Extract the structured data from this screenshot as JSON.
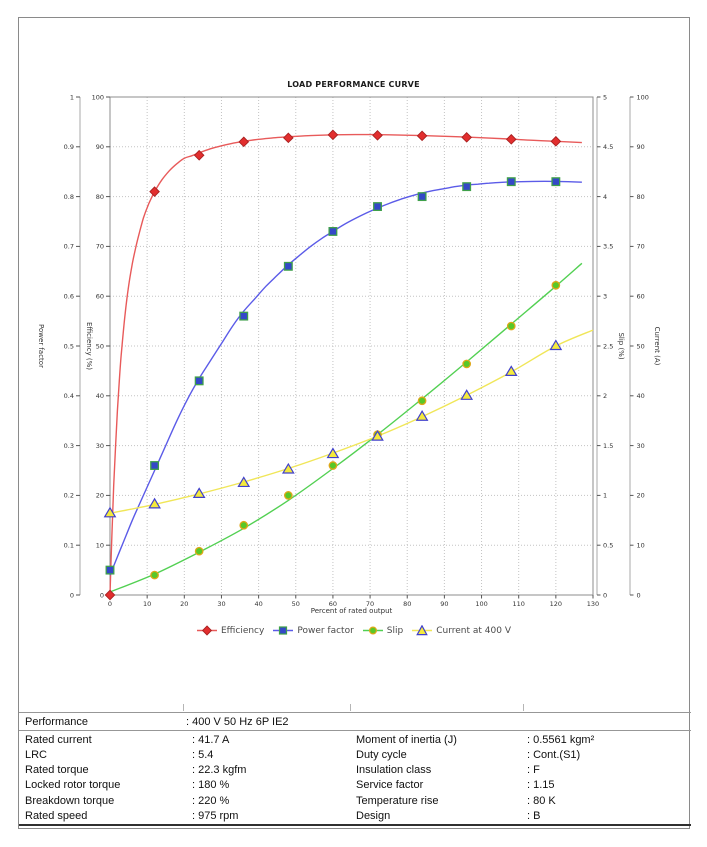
{
  "page": {
    "title": "LOAD PERFORMANCE CURVE"
  },
  "chart_data": {
    "type": "line",
    "title": "LOAD PERFORMANCE CURVE",
    "grid": true,
    "legend_position": "bottom",
    "x_axis": {
      "label": "Percent of rated output",
      "min": 0,
      "max": 130,
      "step": 10
    },
    "axes": {
      "power_factor": {
        "label": "Power factor",
        "min": 0,
        "max": 1,
        "step": 0.1,
        "side": "left-outer"
      },
      "efficiency": {
        "label": "Efficiency (%)",
        "min": 0,
        "max": 100,
        "step": 10,
        "side": "left"
      },
      "slip": {
        "label": "Slip (%)",
        "min": 0,
        "max": 5,
        "step": 0.5,
        "side": "right"
      },
      "current": {
        "label": "Current (A)",
        "min": 0,
        "max": 100,
        "step": 10,
        "side": "right-outer"
      }
    },
    "series": [
      {
        "name": "Efficiency",
        "axis": "efficiency",
        "marker": "diamond",
        "line_color": "#e85a5a",
        "marker_fill": "#e22e2e",
        "marker_stroke": "#a82020",
        "points": [
          [
            0,
            0
          ],
          [
            12,
            81
          ],
          [
            24,
            88.3
          ],
          [
            36,
            91
          ],
          [
            48,
            91.8
          ],
          [
            60,
            92.4
          ],
          [
            72,
            92.3
          ],
          [
            84,
            92.2
          ],
          [
            96,
            91.9
          ],
          [
            108,
            91.5
          ],
          [
            120,
            91.1
          ]
        ],
        "line": [
          [
            0,
            0
          ],
          [
            0.5,
            12
          ],
          [
            1,
            22
          ],
          [
            1.5,
            30
          ],
          [
            2,
            37
          ],
          [
            2.5,
            43
          ],
          [
            3,
            48
          ],
          [
            4,
            56
          ],
          [
            5,
            62
          ],
          [
            6,
            66.5
          ],
          [
            7,
            70
          ],
          [
            8,
            73
          ],
          [
            9,
            75.7
          ],
          [
            10,
            77.8
          ],
          [
            11,
            79.5
          ],
          [
            12,
            81
          ],
          [
            14,
            83.4
          ],
          [
            16,
            85.2
          ],
          [
            18,
            86.6
          ],
          [
            20,
            87.7
          ],
          [
            22,
            88.2
          ],
          [
            24,
            88.8
          ],
          [
            27,
            89.6
          ],
          [
            30,
            90.2
          ],
          [
            33,
            90.7
          ],
          [
            36,
            91.1
          ],
          [
            40,
            91.5
          ],
          [
            44,
            91.8
          ],
          [
            48,
            92
          ],
          [
            54,
            92.25
          ],
          [
            60,
            92.4
          ],
          [
            66,
            92.45
          ],
          [
            72,
            92.45
          ],
          [
            78,
            92.35
          ],
          [
            84,
            92.25
          ],
          [
            90,
            92.1
          ],
          [
            96,
            91.95
          ],
          [
            102,
            91.75
          ],
          [
            108,
            91.55
          ],
          [
            114,
            91.3
          ],
          [
            120,
            91.1
          ],
          [
            127,
            90.85
          ]
        ]
      },
      {
        "name": "Power factor",
        "axis": "power_factor",
        "marker": "square",
        "line_color": "#5b5be8",
        "marker_fill": "#3448c8",
        "marker_stroke": "#3fa04a",
        "points": [
          [
            0,
            0.05
          ],
          [
            12,
            0.26
          ],
          [
            24,
            0.43
          ],
          [
            36,
            0.56
          ],
          [
            48,
            0.66
          ],
          [
            60,
            0.73
          ],
          [
            72,
            0.78
          ],
          [
            84,
            0.8
          ],
          [
            96,
            0.82
          ],
          [
            108,
            0.83
          ],
          [
            120,
            0.83
          ]
        ],
        "line": [
          [
            0,
            0.04
          ],
          [
            3,
            0.095
          ],
          [
            6,
            0.15
          ],
          [
            9,
            0.2
          ],
          [
            12,
            0.25
          ],
          [
            15,
            0.3
          ],
          [
            18,
            0.35
          ],
          [
            21,
            0.395
          ],
          [
            24,
            0.435
          ],
          [
            27,
            0.47
          ],
          [
            30,
            0.505
          ],
          [
            33,
            0.54
          ],
          [
            36,
            0.57
          ],
          [
            39,
            0.595
          ],
          [
            42,
            0.62
          ],
          [
            45,
            0.642
          ],
          [
            48,
            0.663
          ],
          [
            51,
            0.682
          ],
          [
            54,
            0.7
          ],
          [
            57,
            0.716
          ],
          [
            60,
            0.73
          ],
          [
            63,
            0.744
          ],
          [
            66,
            0.756
          ],
          [
            69,
            0.767
          ],
          [
            72,
            0.777
          ],
          [
            75,
            0.786
          ],
          [
            78,
            0.794
          ],
          [
            81,
            0.801
          ],
          [
            84,
            0.807
          ],
          [
            87,
            0.812
          ],
          [
            90,
            0.816
          ],
          [
            93,
            0.82
          ],
          [
            96,
            0.823
          ],
          [
            99,
            0.825
          ],
          [
            102,
            0.827
          ],
          [
            105,
            0.8285
          ],
          [
            108,
            0.8295
          ],
          [
            114,
            0.8305
          ],
          [
            120,
            0.8305
          ],
          [
            127,
            0.829
          ]
        ]
      },
      {
        "name": "Slip",
        "axis": "slip",
        "marker": "circle",
        "line_color": "#52d052",
        "marker_fill": "#58c828",
        "marker_stroke": "#dfa718",
        "points": [
          [
            12,
            0.2
          ],
          [
            24,
            0.44
          ],
          [
            36,
            0.7
          ],
          [
            48,
            1.0
          ],
          [
            60,
            1.3
          ],
          [
            72,
            1.61
          ],
          [
            84,
            1.95
          ],
          [
            96,
            2.32
          ],
          [
            108,
            2.7
          ],
          [
            120,
            3.11
          ]
        ],
        "line": [
          [
            0,
            0.03
          ],
          [
            12,
            0.21
          ],
          [
            24,
            0.43
          ],
          [
            36,
            0.67
          ],
          [
            48,
            0.95
          ],
          [
            60,
            1.27
          ],
          [
            72,
            1.61
          ],
          [
            84,
            1.97
          ],
          [
            96,
            2.34
          ],
          [
            108,
            2.72
          ],
          [
            120,
            3.1
          ],
          [
            127,
            3.33
          ]
        ]
      },
      {
        "name": "Current at 400 V",
        "axis": "current",
        "marker": "triangle",
        "line_color": "#f0e658",
        "marker_fill": "#f4ea3c",
        "marker_stroke": "#4040cc",
        "points": [
          [
            0,
            16.5
          ],
          [
            12,
            18.3
          ],
          [
            24,
            20.4
          ],
          [
            36,
            22.6
          ],
          [
            48,
            25.3
          ],
          [
            60,
            28.4
          ],
          [
            72,
            31.9
          ],
          [
            84,
            35.9
          ],
          [
            96,
            40.1
          ],
          [
            108,
            44.9
          ],
          [
            120,
            50.1
          ]
        ],
        "line": [
          [
            0,
            16.4
          ],
          [
            12,
            18.2
          ],
          [
            24,
            20.3
          ],
          [
            36,
            22.7
          ],
          [
            48,
            25.4
          ],
          [
            60,
            28.5
          ],
          [
            72,
            31.9
          ],
          [
            84,
            35.8
          ],
          [
            96,
            40.1
          ],
          [
            108,
            44.8
          ],
          [
            120,
            50
          ],
          [
            130,
            53.2
          ]
        ]
      }
    ]
  },
  "table": {
    "header": {
      "label": "Performance",
      "value": ": 400 V 50 Hz 6P IE2"
    },
    "rows": [
      {
        "l1": "Rated current",
        "v1": ": 41.7 A",
        "l2": "Moment of inertia (J)",
        "v2": ": 0.5561 kgm²"
      },
      {
        "l1": "LRC",
        "v1": ": 5.4",
        "l2": "Duty cycle",
        "v2": ": Cont.(S1)"
      },
      {
        "l1": "Rated torque",
        "v1": ": 22.3 kgfm",
        "l2": "Insulation class",
        "v2": ": F"
      },
      {
        "l1": "Locked rotor torque",
        "v1": ": 180 %",
        "l2": "Service factor",
        "v2": ": 1.15"
      },
      {
        "l1": "Breakdown torque",
        "v1": ": 220 %",
        "l2": "Temperature rise",
        "v2": ": 80 K"
      },
      {
        "l1": "Rated speed",
        "v1": ": 975 rpm",
        "l2": "Design",
        "v2": ": B"
      }
    ]
  }
}
